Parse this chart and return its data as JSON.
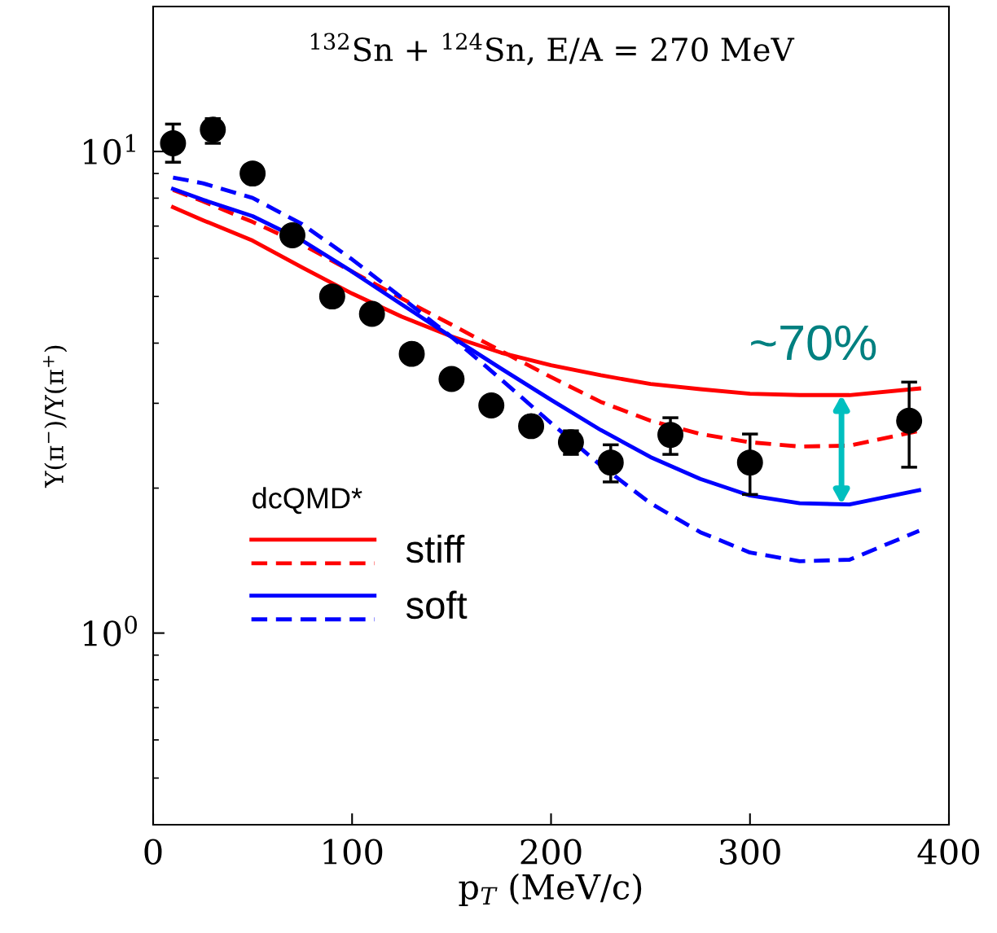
{
  "chart_data": {
    "type": "line",
    "title": "$^{132}$Sn + $^{124}$Sn, E/A = 270 MeV",
    "xlabel": "p$_{T}$ (MeV/c)",
    "ylabel": "Y(π$^{−}$)/Y(π$^{+}$)",
    "legend_title": "dcQMD*",
    "annotations": [
      {
        "text": "~70%",
        "x": 346,
        "y": 3.12
      }
    ],
    "log": "y",
    "xlim": [
      0,
      400
    ],
    "ylim": [
      0.4,
      20
    ],
    "xticks": [
      0,
      100,
      200,
      300,
      400
    ],
    "yticks": [
      {
        "value": 1,
        "label": "10$^{0}$"
      },
      {
        "value": 10,
        "label": "10$^{1}$"
      }
    ],
    "grid": false,
    "legend": "bottom left",
    "series": [
      {
        "type": "scatter",
        "color": "#000000",
        "marker": "circle",
        "x": [
          10,
          30,
          50,
          70,
          90,
          110,
          130,
          150,
          170,
          190,
          210,
          230,
          260,
          300,
          380
        ],
        "values": [
          10.4,
          11.1,
          9.0,
          6.7,
          5.0,
          4.6,
          3.8,
          3.37,
          2.97,
          2.69,
          2.49,
          2.26,
          2.58,
          2.26,
          2.76
        ],
        "errors": [
          [
            9.5,
            11.4
          ],
          [
            10.4,
            11.7
          ],
          null,
          null,
          null,
          null,
          null,
          null,
          null,
          null,
          [
            2.35,
            2.63
          ],
          [
            2.06,
            2.46
          ],
          [
            2.35,
            2.8
          ],
          [
            1.94,
            2.59
          ],
          [
            2.21,
            3.32
          ]
        ]
      },
      {
        "name": "stiff",
        "color": "#ff0000",
        "line_style": "solid",
        "x": [
          10,
          25,
          50,
          75,
          100,
          125,
          150,
          175,
          200,
          225,
          250,
          275,
          300,
          325,
          350,
          385
        ],
        "values": [
          7.66,
          7.2,
          6.53,
          5.74,
          5.07,
          4.54,
          4.13,
          3.82,
          3.6,
          3.43,
          3.29,
          3.21,
          3.14,
          3.12,
          3.12,
          3.22
        ]
      },
      {
        "color": "#ff0000",
        "line_style": "dashed",
        "x": [
          10,
          25,
          50,
          75,
          100,
          125,
          150,
          175,
          200,
          225,
          250,
          275,
          300,
          325,
          350,
          385
        ],
        "values": [
          8.32,
          7.88,
          7.14,
          6.41,
          5.63,
          4.95,
          4.37,
          3.85,
          3.4,
          3.02,
          2.76,
          2.59,
          2.49,
          2.44,
          2.45,
          2.63
        ]
      },
      {
        "name": "soft",
        "color": "#0000ff",
        "line_style": "solid",
        "x": [
          10,
          25,
          50,
          75,
          100,
          125,
          150,
          175,
          200,
          225,
          250,
          275,
          300,
          325,
          350,
          385
        ],
        "values": [
          8.36,
          7.94,
          7.34,
          6.53,
          5.63,
          4.81,
          4.12,
          3.54,
          3.05,
          2.64,
          2.32,
          2.09,
          1.93,
          1.86,
          1.85,
          1.98
        ]
      },
      {
        "color": "#0000ff",
        "line_style": "dashed",
        "x": [
          10,
          25,
          50,
          75,
          100,
          125,
          150,
          175,
          200,
          225,
          250,
          275,
          300,
          325,
          350,
          385
        ],
        "values": [
          8.83,
          8.59,
          8.01,
          7.06,
          5.97,
          4.97,
          4.12,
          3.36,
          2.73,
          2.23,
          1.86,
          1.62,
          1.47,
          1.41,
          1.42,
          1.63
        ]
      }
    ]
  }
}
